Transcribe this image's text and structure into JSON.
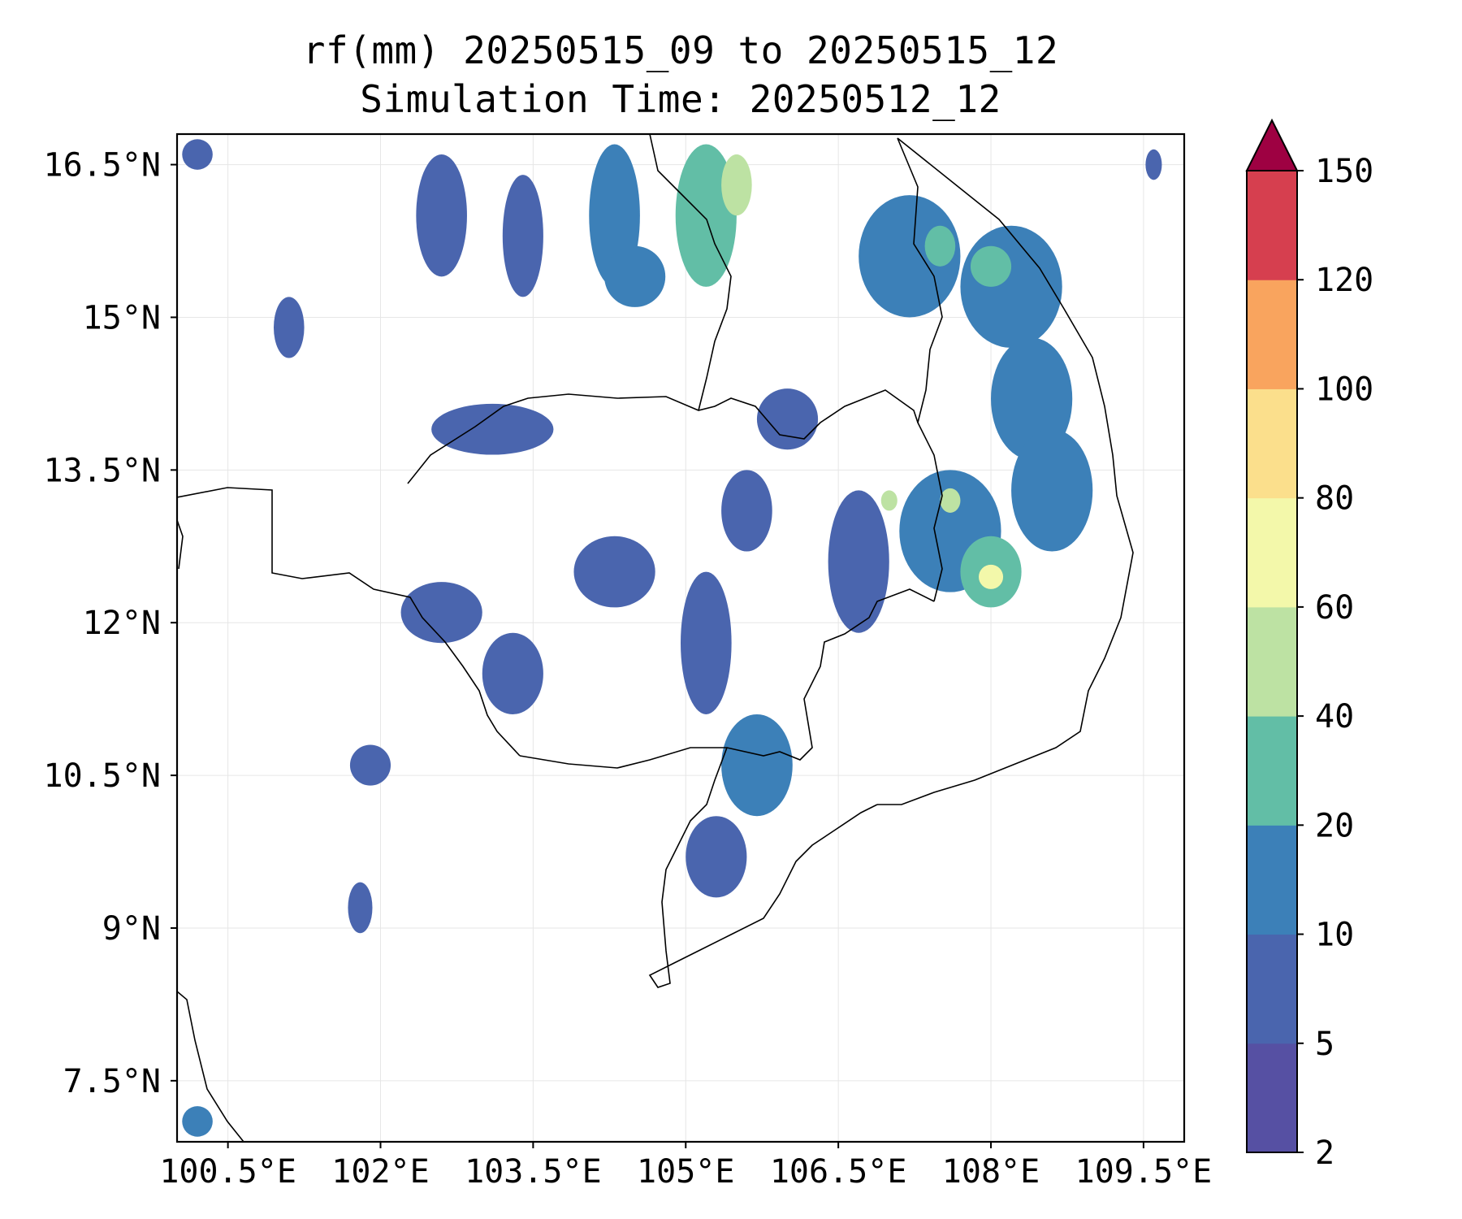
{
  "title": {
    "line1": "rf(mm) 20250515_09 to 20250515_12",
    "line2": "Simulation Time: 20250512_12"
  },
  "map": {
    "lon_range": [
      100.0,
      109.9
    ],
    "lat_range": [
      6.9,
      16.8
    ],
    "lon_ticks": [
      {
        "value": 100.5,
        "label": "100.5°E"
      },
      {
        "value": 102.0,
        "label": "102°E"
      },
      {
        "value": 103.5,
        "label": "103.5°E"
      },
      {
        "value": 105.0,
        "label": "105°E"
      },
      {
        "value": 106.5,
        "label": "106.5°E"
      },
      {
        "value": 108.0,
        "label": "108°E"
      },
      {
        "value": 109.5,
        "label": "109.5°E"
      }
    ],
    "lat_ticks": [
      {
        "value": 16.5,
        "label": "16.5°N"
      },
      {
        "value": 15.0,
        "label": "15°N"
      },
      {
        "value": 13.5,
        "label": "13.5°N"
      },
      {
        "value": 12.0,
        "label": "12°N"
      },
      {
        "value": 10.5,
        "label": "10.5°N"
      },
      {
        "value": 9.0,
        "label": "9°N"
      },
      {
        "value": 7.5,
        "label": "7.5°N"
      }
    ],
    "grid": true,
    "rain_cells": [
      {
        "lon": 102.6,
        "lat": 16.0,
        "rx": 0.25,
        "ry": 0.6,
        "level": 1
      },
      {
        "lon": 103.4,
        "lat": 15.8,
        "rx": 0.2,
        "ry": 0.6,
        "level": 1
      },
      {
        "lon": 104.3,
        "lat": 16.0,
        "rx": 0.25,
        "ry": 0.7,
        "level": 2
      },
      {
        "lon": 105.2,
        "lat": 16.0,
        "rx": 0.3,
        "ry": 0.7,
        "level": 3
      },
      {
        "lon": 105.5,
        "lat": 16.3,
        "rx": 0.15,
        "ry": 0.3,
        "level": 4
      },
      {
        "lon": 104.5,
        "lat": 15.4,
        "rx": 0.3,
        "ry": 0.3,
        "level": 2
      },
      {
        "lon": 107.2,
        "lat": 15.6,
        "rx": 0.5,
        "ry": 0.6,
        "level": 2
      },
      {
        "lon": 107.5,
        "lat": 15.7,
        "rx": 0.15,
        "ry": 0.2,
        "level": 3
      },
      {
        "lon": 108.2,
        "lat": 15.3,
        "rx": 0.5,
        "ry": 0.6,
        "level": 2
      },
      {
        "lon": 108.0,
        "lat": 15.5,
        "rx": 0.2,
        "ry": 0.2,
        "level": 3
      },
      {
        "lon": 108.4,
        "lat": 14.2,
        "rx": 0.4,
        "ry": 0.6,
        "level": 2
      },
      {
        "lon": 108.6,
        "lat": 13.3,
        "rx": 0.4,
        "ry": 0.6,
        "level": 2
      },
      {
        "lon": 107.6,
        "lat": 12.9,
        "rx": 0.5,
        "ry": 0.6,
        "level": 2
      },
      {
        "lon": 108.0,
        "lat": 12.5,
        "rx": 0.3,
        "ry": 0.35,
        "level": 3
      },
      {
        "lon": 108.0,
        "lat": 12.45,
        "rx": 0.12,
        "ry": 0.12,
        "level": 5
      },
      {
        "lon": 107.6,
        "lat": 13.2,
        "rx": 0.1,
        "ry": 0.12,
        "level": 4
      },
      {
        "lon": 107.0,
        "lat": 13.2,
        "rx": 0.08,
        "ry": 0.1,
        "level": 4
      },
      {
        "lon": 106.7,
        "lat": 12.6,
        "rx": 0.3,
        "ry": 0.7,
        "level": 1
      },
      {
        "lon": 103.1,
        "lat": 13.9,
        "rx": 0.6,
        "ry": 0.25,
        "level": 1
      },
      {
        "lon": 101.1,
        "lat": 14.9,
        "rx": 0.15,
        "ry": 0.3,
        "level": 1
      },
      {
        "lon": 102.6,
        "lat": 12.1,
        "rx": 0.4,
        "ry": 0.3,
        "level": 1
      },
      {
        "lon": 103.3,
        "lat": 11.5,
        "rx": 0.3,
        "ry": 0.4,
        "level": 1
      },
      {
        "lon": 104.3,
        "lat": 12.5,
        "rx": 0.4,
        "ry": 0.35,
        "level": 1
      },
      {
        "lon": 105.2,
        "lat": 11.8,
        "rx": 0.25,
        "ry": 0.7,
        "level": 1
      },
      {
        "lon": 105.7,
        "lat": 10.6,
        "rx": 0.35,
        "ry": 0.5,
        "level": 2
      },
      {
        "lon": 105.3,
        "lat": 9.7,
        "rx": 0.3,
        "ry": 0.4,
        "level": 1
      },
      {
        "lon": 101.9,
        "lat": 10.6,
        "rx": 0.2,
        "ry": 0.2,
        "level": 1
      },
      {
        "lon": 106.0,
        "lat": 14.0,
        "rx": 0.3,
        "ry": 0.3,
        "level": 1
      },
      {
        "lon": 105.6,
        "lat": 13.1,
        "rx": 0.25,
        "ry": 0.4,
        "level": 1
      },
      {
        "lon": 100.2,
        "lat": 16.6,
        "rx": 0.15,
        "ry": 0.15,
        "level": 1
      },
      {
        "lon": 109.6,
        "lat": 16.5,
        "rx": 0.08,
        "ry": 0.15,
        "level": 1
      },
      {
        "lon": 100.2,
        "lat": 7.1,
        "rx": 0.15,
        "ry": 0.15,
        "level": 2
      },
      {
        "lon": 101.8,
        "lat": 9.2,
        "rx": 0.12,
        "ry": 0.25,
        "level": 1
      }
    ]
  },
  "colorbar": {
    "extend": "max",
    "bounds": [
      2,
      5,
      10,
      20,
      40,
      60,
      80,
      100,
      120,
      150
    ],
    "labels": [
      "2",
      "5",
      "10",
      "20",
      "40",
      "60",
      "80",
      "100",
      "120",
      "150"
    ],
    "colors": [
      "#5650a3",
      "#4a65ae",
      "#3c80b8",
      "#62bea6",
      "#bde2a3",
      "#f3f8aa",
      "#fbdf8c",
      "#f9a45e",
      "#d63f4f",
      "#9e0142"
    ]
  }
}
